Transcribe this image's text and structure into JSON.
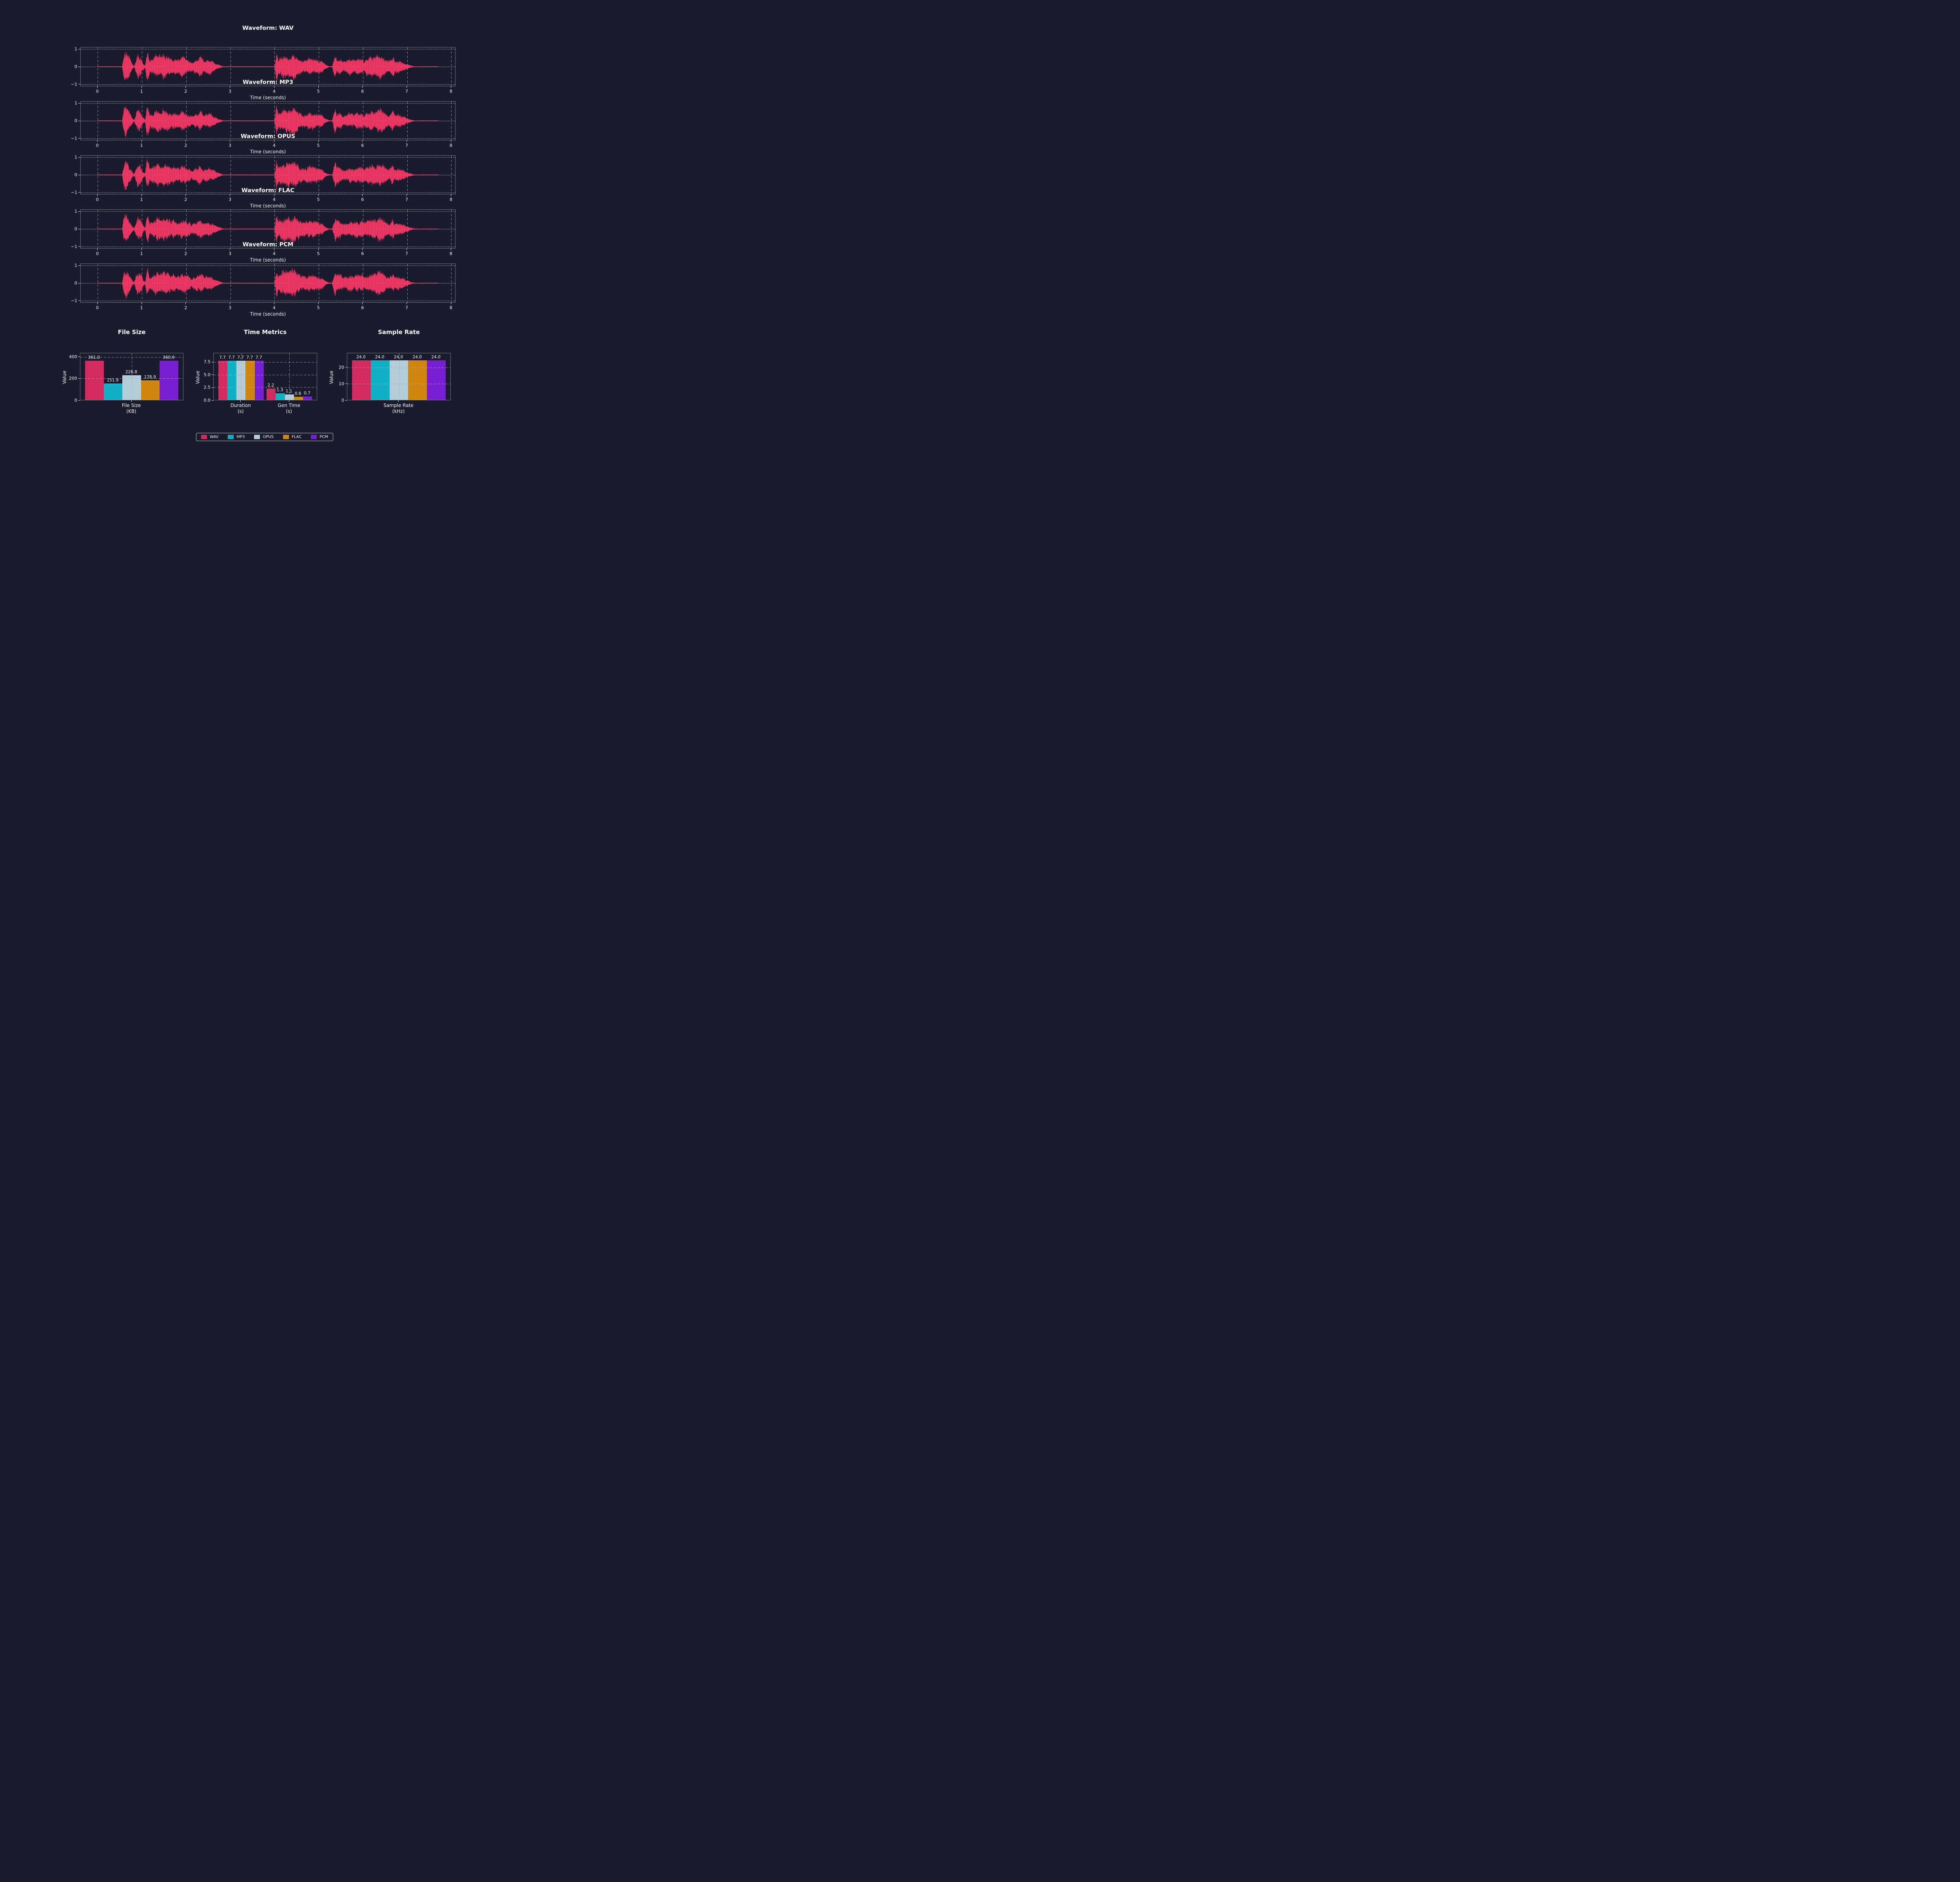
{
  "page": {
    "background": "#1A1B2C",
    "text_color": "#F4F4F8"
  },
  "palette": {
    "WAV": "#D42A5F",
    "MP3": "#0FB2C5",
    "OPUS": "#B2CDD8",
    "FLAC": "#D0860C",
    "PCM": "#7A1ED1",
    "waveform": "#FB3A67",
    "grid": "rgba(168,173,190,0.8)",
    "spine": "#73737F"
  },
  "chart_data": {
    "waveforms": {
      "type": "area",
      "titles": [
        "Waveform: WAV",
        "Waveform: MP3",
        "Waveform: OPUS",
        "Waveform: FLAC",
        "Waveform: PCM"
      ],
      "xlabel": "Time (seconds)",
      "xticks": [
        0,
        1,
        2,
        3,
        4,
        5,
        6,
        7,
        8
      ],
      "yticks": [
        {
          "v": 1,
          "label": "1"
        },
        {
          "v": 0,
          "label": "0"
        },
        {
          "v": -1,
          "label": "−1"
        }
      ],
      "xlim": [
        -0.385,
        8.085
      ],
      "ylim": [
        -1.1,
        1.1
      ],
      "duration_s": 7.7,
      "color": "#FB3A67",
      "envelope": [
        [
          0.0,
          0.012
        ],
        [
          0.55,
          0.012
        ],
        [
          0.57,
          0.55
        ],
        [
          0.6,
          0.97
        ],
        [
          0.66,
          0.92
        ],
        [
          0.72,
          0.55
        ],
        [
          0.78,
          0.18
        ],
        [
          0.82,
          0.05
        ],
        [
          0.86,
          0.45
        ],
        [
          0.9,
          0.78
        ],
        [
          0.97,
          0.62
        ],
        [
          1.03,
          0.2
        ],
        [
          1.07,
          0.1
        ],
        [
          1.1,
          0.85
        ],
        [
          1.13,
          0.92
        ],
        [
          1.18,
          0.4
        ],
        [
          1.22,
          0.5
        ],
        [
          1.28,
          0.68
        ],
        [
          1.35,
          0.72
        ],
        [
          1.42,
          0.62
        ],
        [
          1.5,
          0.72
        ],
        [
          1.58,
          0.65
        ],
        [
          1.65,
          0.52
        ],
        [
          1.72,
          0.6
        ],
        [
          1.78,
          0.48
        ],
        [
          1.85,
          0.55
        ],
        [
          1.92,
          0.62
        ],
        [
          2.0,
          0.52
        ],
        [
          2.08,
          0.45
        ],
        [
          2.12,
          0.3
        ],
        [
          2.2,
          0.42
        ],
        [
          2.28,
          0.5
        ],
        [
          2.33,
          0.62
        ],
        [
          2.4,
          0.38
        ],
        [
          2.45,
          0.42
        ],
        [
          2.52,
          0.48
        ],
        [
          2.6,
          0.35
        ],
        [
          2.7,
          0.18
        ],
        [
          2.8,
          0.06
        ],
        [
          2.85,
          0.015
        ],
        [
          4.0,
          0.015
        ],
        [
          4.04,
          0.95
        ],
        [
          4.08,
          0.5
        ],
        [
          4.12,
          0.6
        ],
        [
          4.2,
          0.78
        ],
        [
          4.3,
          0.72
        ],
        [
          4.38,
          0.82
        ],
        [
          4.5,
          0.75
        ],
        [
          4.58,
          0.5
        ],
        [
          4.65,
          0.45
        ],
        [
          4.75,
          0.52
        ],
        [
          4.85,
          0.55
        ],
        [
          4.95,
          0.5
        ],
        [
          5.05,
          0.42
        ],
        [
          5.15,
          0.15
        ],
        [
          5.22,
          0.04
        ],
        [
          5.3,
          0.03
        ],
        [
          5.37,
          0.88
        ],
        [
          5.4,
          0.55
        ],
        [
          5.48,
          0.55
        ],
        [
          5.55,
          0.35
        ],
        [
          5.62,
          0.42
        ],
        [
          5.7,
          0.5
        ],
        [
          5.78,
          0.45
        ],
        [
          5.85,
          0.55
        ],
        [
          5.92,
          0.48
        ],
        [
          5.98,
          0.55
        ],
        [
          6.02,
          0.35
        ],
        [
          6.08,
          0.55
        ],
        [
          6.15,
          0.62
        ],
        [
          6.25,
          0.6
        ],
        [
          6.32,
          0.7
        ],
        [
          6.38,
          0.75
        ],
        [
          6.45,
          0.62
        ],
        [
          6.52,
          0.48
        ],
        [
          6.6,
          0.35
        ],
        [
          6.68,
          0.7
        ],
        [
          6.72,
          0.35
        ],
        [
          6.8,
          0.42
        ],
        [
          6.88,
          0.38
        ],
        [
          6.95,
          0.25
        ],
        [
          7.05,
          0.12
        ],
        [
          7.12,
          0.05
        ],
        [
          7.18,
          0.02
        ],
        [
          7.7,
          0.012
        ]
      ]
    },
    "bar_charts": [
      {
        "type": "bar",
        "title": "File Size",
        "ylabel": "Value",
        "series": [
          "WAV",
          "MP3",
          "OPUS",
          "FLAC",
          "PCM"
        ],
        "groups": [
          {
            "label": "File Size\n(KB)",
            "values": [
              361.0,
              151.9,
              226.8,
              178.9,
              360.9
            ],
            "value_labels": [
              "361.0",
              "151.9",
              "226.8",
              "178.9",
              "360.9"
            ]
          }
        ],
        "yticks": [
          {
            "v": 0,
            "label": "0"
          },
          {
            "v": 200,
            "label": "200"
          },
          {
            "v": 400,
            "label": "400"
          }
        ],
        "ylim": [
          0,
          436
        ],
        "grid": true
      },
      {
        "type": "bar",
        "title": "Time Metrics",
        "ylabel": "Value",
        "series": [
          "WAV",
          "MP3",
          "OPUS",
          "FLAC",
          "PCM"
        ],
        "groups": [
          {
            "label": "Duration\n(s)",
            "values": [
              7.7,
              7.7,
              7.7,
              7.7,
              7.7
            ],
            "value_labels": [
              "7.7",
              "7.7",
              "7.7",
              "7.7",
              "7.7"
            ]
          },
          {
            "label": "Gen Time\n(s)",
            "values": [
              2.2,
              1.3,
              1.1,
              0.6,
              0.7
            ],
            "value_labels": [
              "2.2",
              "1.3",
              "1.1",
              "0.6",
              "0.7"
            ]
          }
        ],
        "yticks": [
          {
            "v": 0,
            "label": "0.0"
          },
          {
            "v": 2.5,
            "label": "2.5"
          },
          {
            "v": 5,
            "label": "5.0"
          },
          {
            "v": 7.5,
            "label": "7.5"
          }
        ],
        "ylim": [
          0,
          9.3
        ],
        "grid": true
      },
      {
        "type": "bar",
        "title": "Sample Rate",
        "ylabel": "Value",
        "series": [
          "WAV",
          "MP3",
          "OPUS",
          "FLAC",
          "PCM"
        ],
        "groups": [
          {
            "label": "Sample Rate\n(kHz)",
            "values": [
              24.0,
              24.0,
              24.0,
              24.0,
              24.0
            ],
            "value_labels": [
              "24.0",
              "24.0",
              "24.0",
              "24.0",
              "24.0"
            ]
          }
        ],
        "yticks": [
          {
            "v": 0,
            "label": "0"
          },
          {
            "v": 10,
            "label": "10"
          },
          {
            "v": 20,
            "label": "20"
          }
        ],
        "ylim": [
          0,
          28.8
        ],
        "grid": true
      }
    ],
    "legend": {
      "position": "lower center",
      "entries": [
        {
          "label": "WAV",
          "color": "#D42A5F"
        },
        {
          "label": "MP3",
          "color": "#0FB2C5"
        },
        {
          "label": "OPUS",
          "color": "#B2CDD8"
        },
        {
          "label": "FLAC",
          "color": "#D0860C"
        },
        {
          "label": "PCM",
          "color": "#7A1ED1"
        }
      ]
    }
  }
}
